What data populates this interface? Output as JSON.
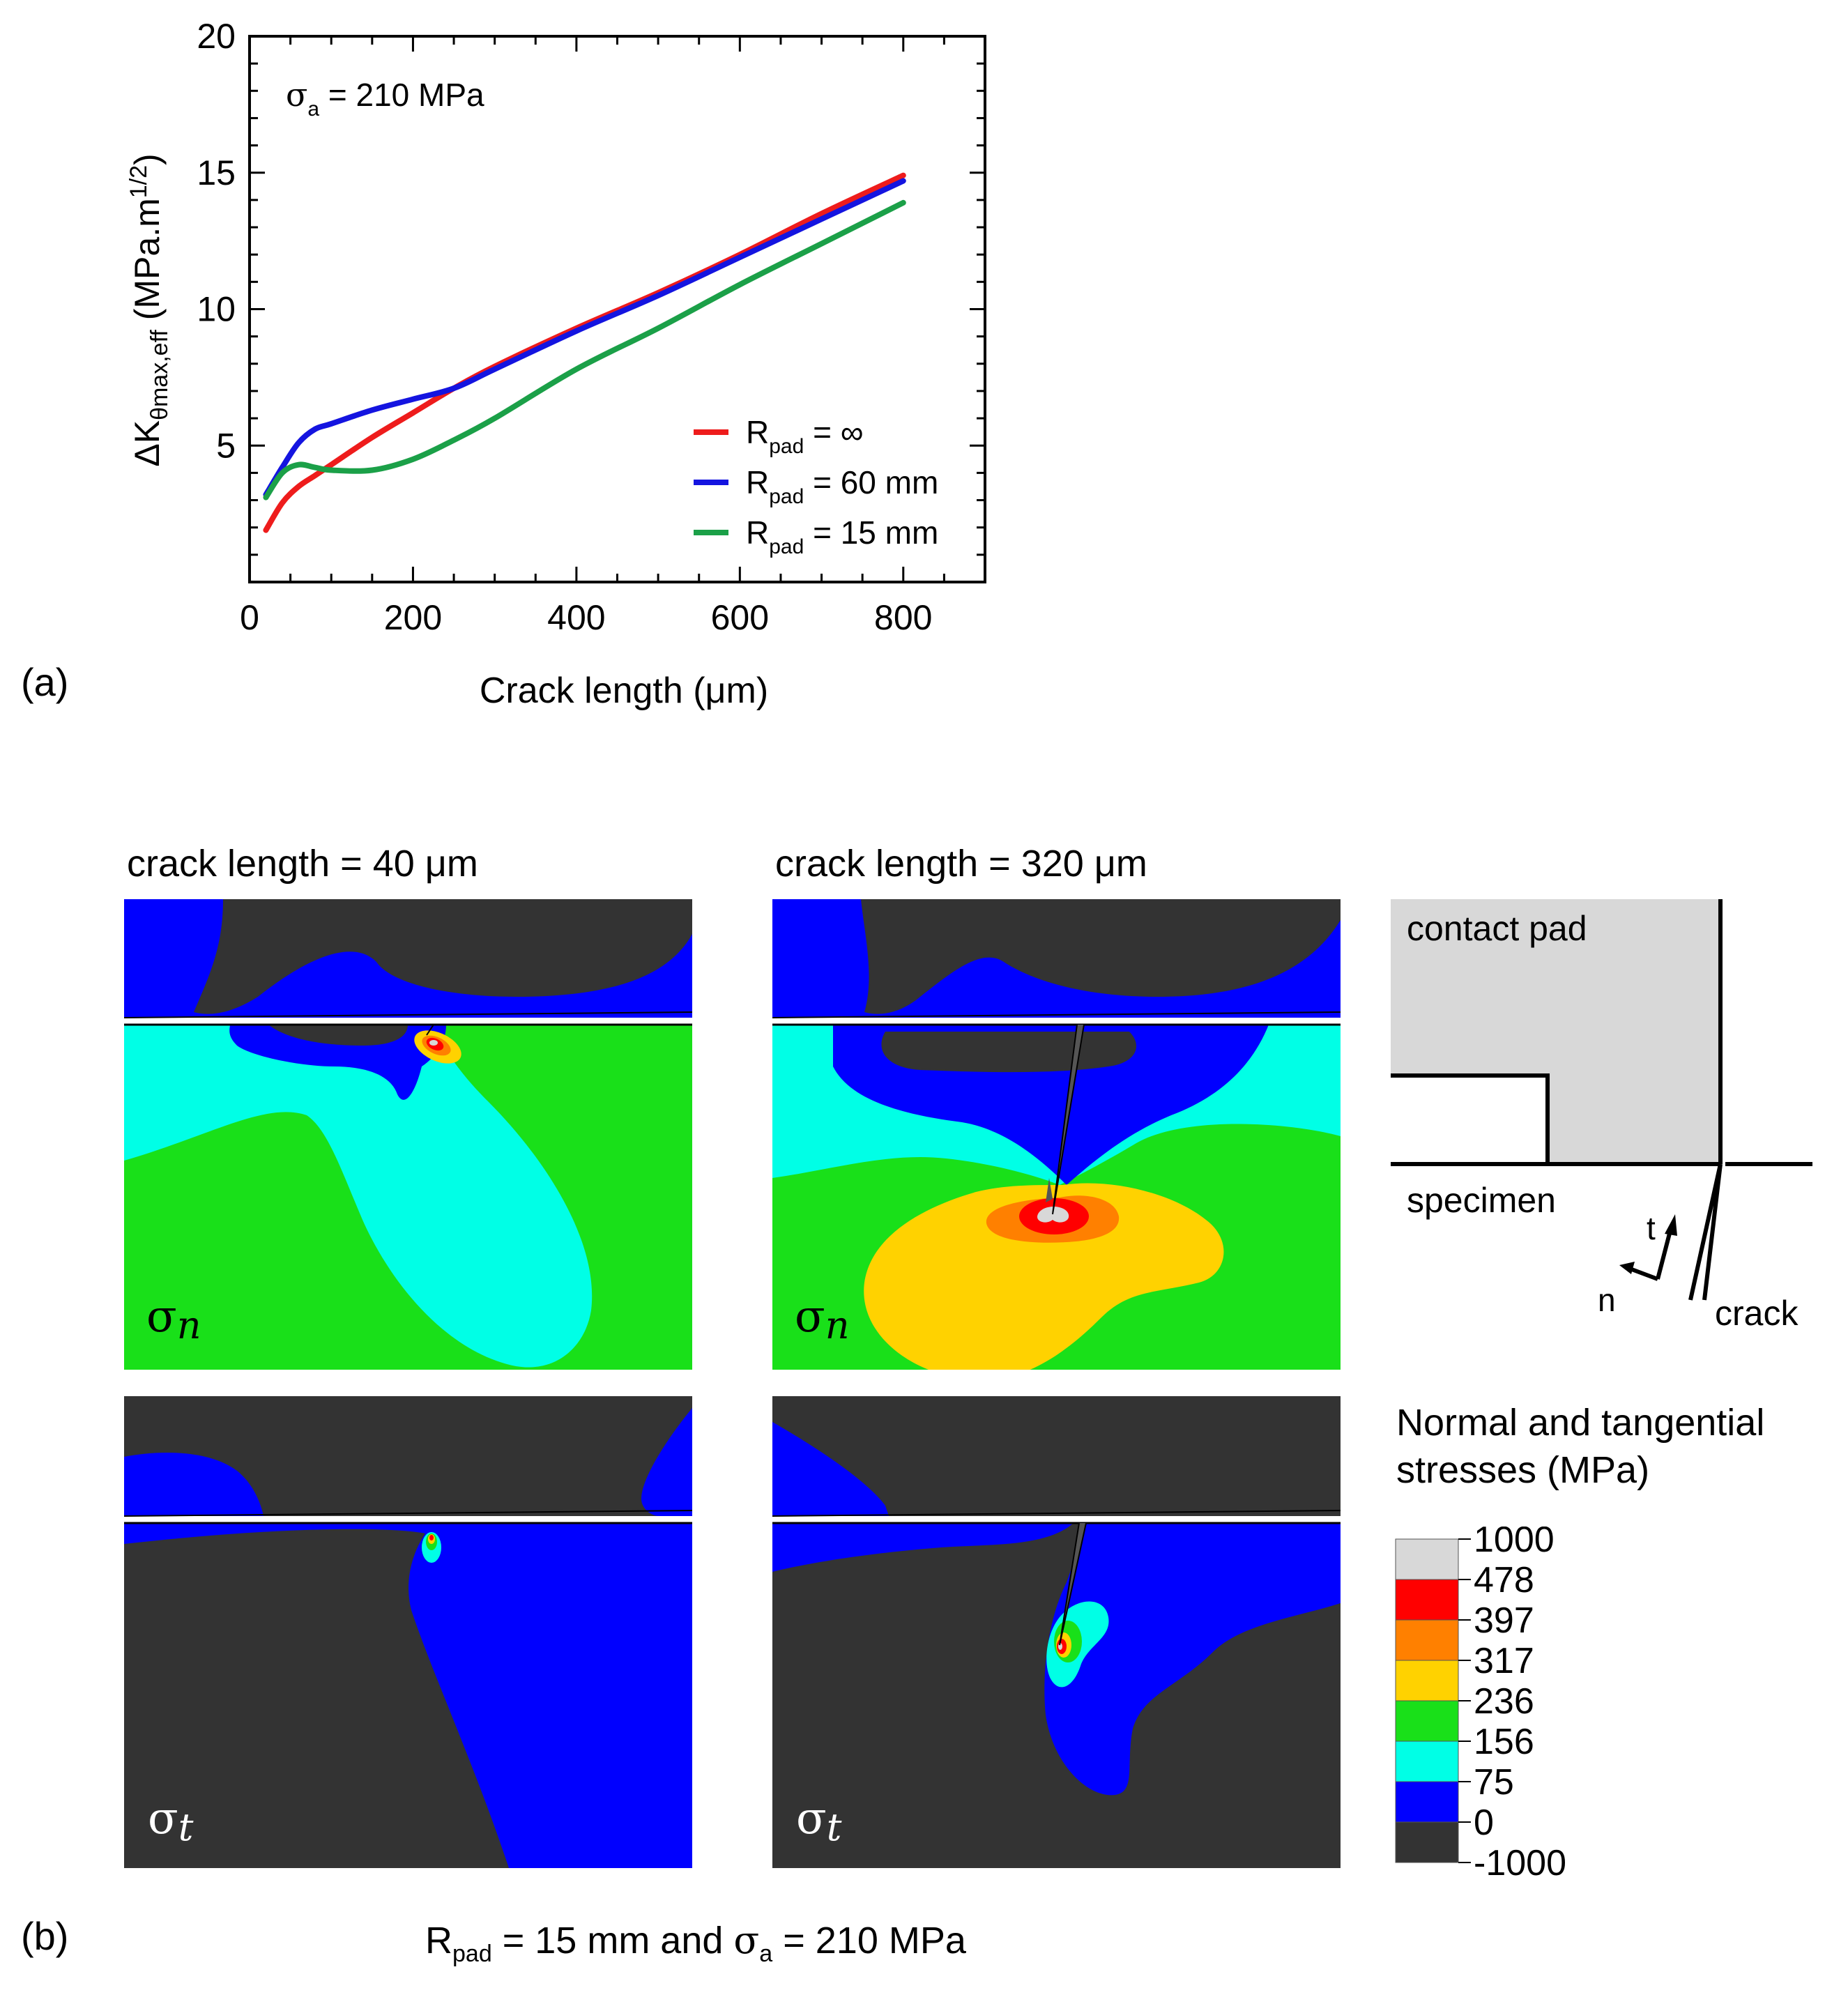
{
  "panel_a": {
    "label": "(a)",
    "annotation": {
      "sigma": "σ",
      "sub": "a",
      "rest": " = 210 MPa"
    },
    "y_axis_label": {
      "prefix": "ΔK",
      "sub": "θmax,eff",
      "mid": " (MPa.m",
      "sup": "1/2",
      "end": ")"
    },
    "x_axis_label": "Crack length (μm)",
    "legend": [
      {
        "sym": "R",
        "sub": "pad",
        "rest": " = ∞"
      },
      {
        "sym": "R",
        "sub": "pad",
        "rest": " = 60 mm"
      },
      {
        "sym": "R",
        "sub": "pad",
        "rest": " = 15 mm"
      }
    ]
  },
  "chart_data": {
    "type": "line",
    "title": "",
    "xlabel": "Crack length (μm)",
    "ylabel": "ΔKθmax,eff (MPa.m1/2)",
    "xlim": [
      0,
      900
    ],
    "ylim": [
      0,
      20
    ],
    "xticks": [
      0,
      200,
      400,
      600,
      800
    ],
    "yticks": [
      5,
      10,
      15,
      20
    ],
    "grid": false,
    "legend_position": "bottom-right",
    "series": [
      {
        "name": "Rpad = ∞",
        "color": "#ee1c1c",
        "x": [
          20,
          40,
          60,
          80,
          100,
          150,
          200,
          250,
          300,
          400,
          500,
          600,
          700,
          800
        ],
        "y": [
          1.9,
          2.9,
          3.5,
          3.9,
          4.3,
          5.3,
          6.2,
          7.1,
          7.9,
          9.3,
          10.6,
          12.0,
          13.5,
          14.9
        ]
      },
      {
        "name": "Rpad = 60 mm",
        "color": "#1414e0",
        "x": [
          20,
          40,
          60,
          80,
          100,
          150,
          200,
          250,
          300,
          400,
          500,
          600,
          700,
          800
        ],
        "y": [
          3.2,
          4.2,
          5.1,
          5.6,
          5.8,
          6.3,
          6.7,
          7.1,
          7.8,
          9.2,
          10.5,
          11.9,
          13.3,
          14.7
        ]
      },
      {
        "name": "Rpad = 15 mm",
        "color": "#1ba048",
        "x": [
          20,
          40,
          60,
          80,
          100,
          150,
          200,
          250,
          300,
          400,
          500,
          600,
          700,
          800
        ],
        "y": [
          3.1,
          4.0,
          4.3,
          4.2,
          4.1,
          4.1,
          4.5,
          5.2,
          6.0,
          7.8,
          9.3,
          10.9,
          12.4,
          13.9
        ]
      }
    ]
  },
  "panel_b": {
    "label": "(b)",
    "col1_title": "crack length = 40 μm",
    "col2_title": "crack length = 320 μm",
    "sigma_n": {
      "sym": "σ",
      "sub": "n"
    },
    "sigma_t": {
      "sym": "σ",
      "sub": "t"
    },
    "schematic": {
      "contact_pad": "contact pad",
      "specimen": "specimen",
      "crack": "crack",
      "t": "t",
      "n": "n"
    },
    "colorbar_title_1": "Normal and tangential",
    "colorbar_title_2": "stresses (MPa)",
    "colorbar_labels": [
      "1000",
      "478",
      "397",
      "317",
      "236",
      "156",
      "75",
      "0",
      "-1000"
    ],
    "colorbar_colors": [
      "#d8d8d8",
      "#ff0000",
      "#ff8000",
      "#ffd200",
      "#19e019",
      "#00ffe6",
      "#0000ff",
      "#333333"
    ],
    "caption": {
      "r": "R",
      "r_sub": "pad",
      "mid": " = 15 mm  and ",
      "sigma": "σ",
      "sigma_sub": "a",
      "end": " = 210 MPa"
    }
  },
  "colors": {
    "dark": "#333333",
    "blue": "#0000ff",
    "cyan": "#00ffe6",
    "green": "#19e019",
    "yellow": "#ffd200",
    "orange": "#ff8000",
    "red": "#ff0000",
    "gray": "#d8d8d8"
  }
}
